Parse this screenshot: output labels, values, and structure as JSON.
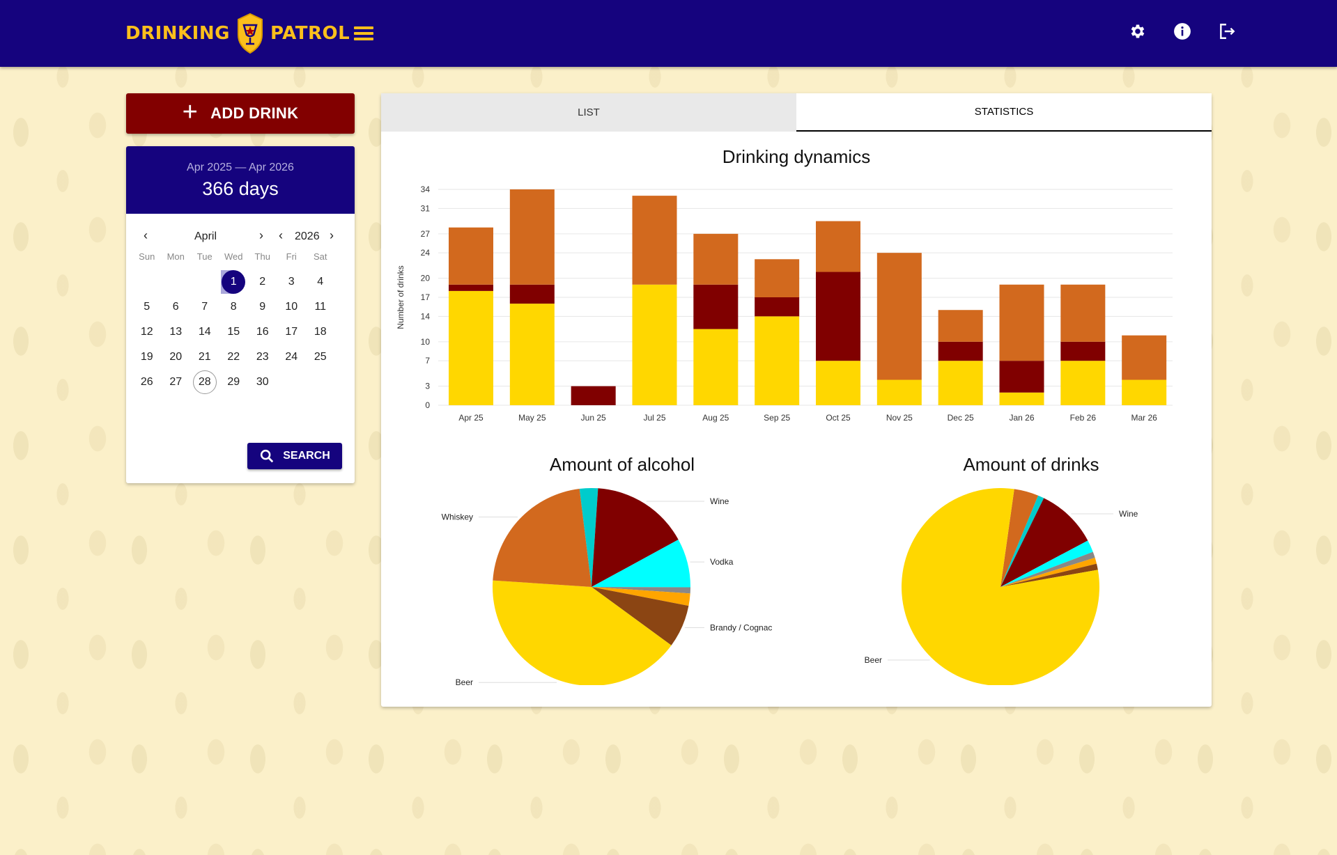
{
  "header": {
    "logo_left": "DRINKING",
    "logo_right": "PATROL",
    "icons": [
      "settings-icon",
      "info-icon",
      "logout-icon"
    ],
    "bg_color": "#15037e",
    "accent_color": "#fbbf1c"
  },
  "sidebar": {
    "add_drink_label": "ADD DRINK",
    "date_range": "Apr 2025 — Apr 2026",
    "days_count": "366 days",
    "month": "April",
    "year": "2026",
    "weekdays": [
      "Sun",
      "Mon",
      "Tue",
      "Wed",
      "Thu",
      "Fri",
      "Sat"
    ],
    "first_weekday_index": 3,
    "days_in_month": 30,
    "selected_day": 1,
    "today_day": 28,
    "search_label": "SEARCH"
  },
  "tabs": [
    {
      "label": "LIST",
      "active": false
    },
    {
      "label": "STATISTICS",
      "active": true
    }
  ],
  "colors": {
    "beer": "#ffd700",
    "wine": "#800000",
    "strong": "#d2691e",
    "vodka": "#00ffff",
    "cider": "#00cccc",
    "brandy": "#8b4513",
    "other": "#ffa500",
    "gray": "#888888"
  },
  "chart_data": [
    {
      "type": "bar",
      "stacked": true,
      "title": "Drinking dynamics",
      "ylabel": "Number of drinks",
      "ylim": [
        0,
        34
      ],
      "yticks": [
        0,
        3,
        7,
        10,
        14,
        17,
        20,
        24,
        27,
        31,
        34
      ],
      "categories": [
        "Apr 25",
        "May 25",
        "Jun 25",
        "Jul 25",
        "Aug 25",
        "Sep 25",
        "Oct 25",
        "Nov 25",
        "Dec 25",
        "Jan 26",
        "Feb 26",
        "Mar 26"
      ],
      "series": [
        {
          "color": "#ffd700",
          "values": [
            18,
            16,
            0,
            19,
            12,
            14,
            7,
            4,
            7,
            2,
            7,
            4
          ]
        },
        {
          "color": "#800000",
          "values": [
            1,
            3,
            3,
            0,
            7,
            3,
            14,
            0,
            3,
            5,
            3,
            0
          ]
        },
        {
          "color": "#d2691e",
          "values": [
            9,
            15,
            0,
            14,
            8,
            6,
            8,
            20,
            5,
            12,
            9,
            7
          ]
        }
      ]
    },
    {
      "type": "pie",
      "title": "Amount of alcohol",
      "labels": [
        "Wine",
        "Vodka",
        "Brandy / Cognac",
        "Beer",
        "Whiskey"
      ],
      "slices": [
        {
          "label": "",
          "value": 3,
          "color": "#00cccc"
        },
        {
          "label": "Wine",
          "value": 16,
          "color": "#800000"
        },
        {
          "label": "Vodka",
          "value": 8,
          "color": "#00ffff"
        },
        {
          "label": "",
          "value": 1,
          "color": "#888888"
        },
        {
          "label": "",
          "value": 2,
          "color": "#ffa500"
        },
        {
          "label": "Brandy / Cognac",
          "value": 7,
          "color": "#8b4513"
        },
        {
          "label": "Beer",
          "value": 41,
          "color": "#ffd700"
        },
        {
          "label": "Whiskey",
          "value": 22,
          "color": "#d2691e"
        }
      ]
    },
    {
      "type": "pie",
      "title": "Amount of drinks",
      "labels": [
        "Wine",
        "Beer"
      ],
      "slices": [
        {
          "label": "",
          "value": 4,
          "color": "#d2691e"
        },
        {
          "label": "",
          "value": 1,
          "color": "#00cccc"
        },
        {
          "label": "Wine",
          "value": 10,
          "color": "#800000"
        },
        {
          "label": "",
          "value": 2,
          "color": "#00ffff"
        },
        {
          "label": "",
          "value": 1,
          "color": "#888888"
        },
        {
          "label": "",
          "value": 1,
          "color": "#ffa500"
        },
        {
          "label": "",
          "value": 1,
          "color": "#8b4513"
        },
        {
          "label": "Beer",
          "value": 80,
          "color": "#ffd700"
        }
      ]
    }
  ]
}
